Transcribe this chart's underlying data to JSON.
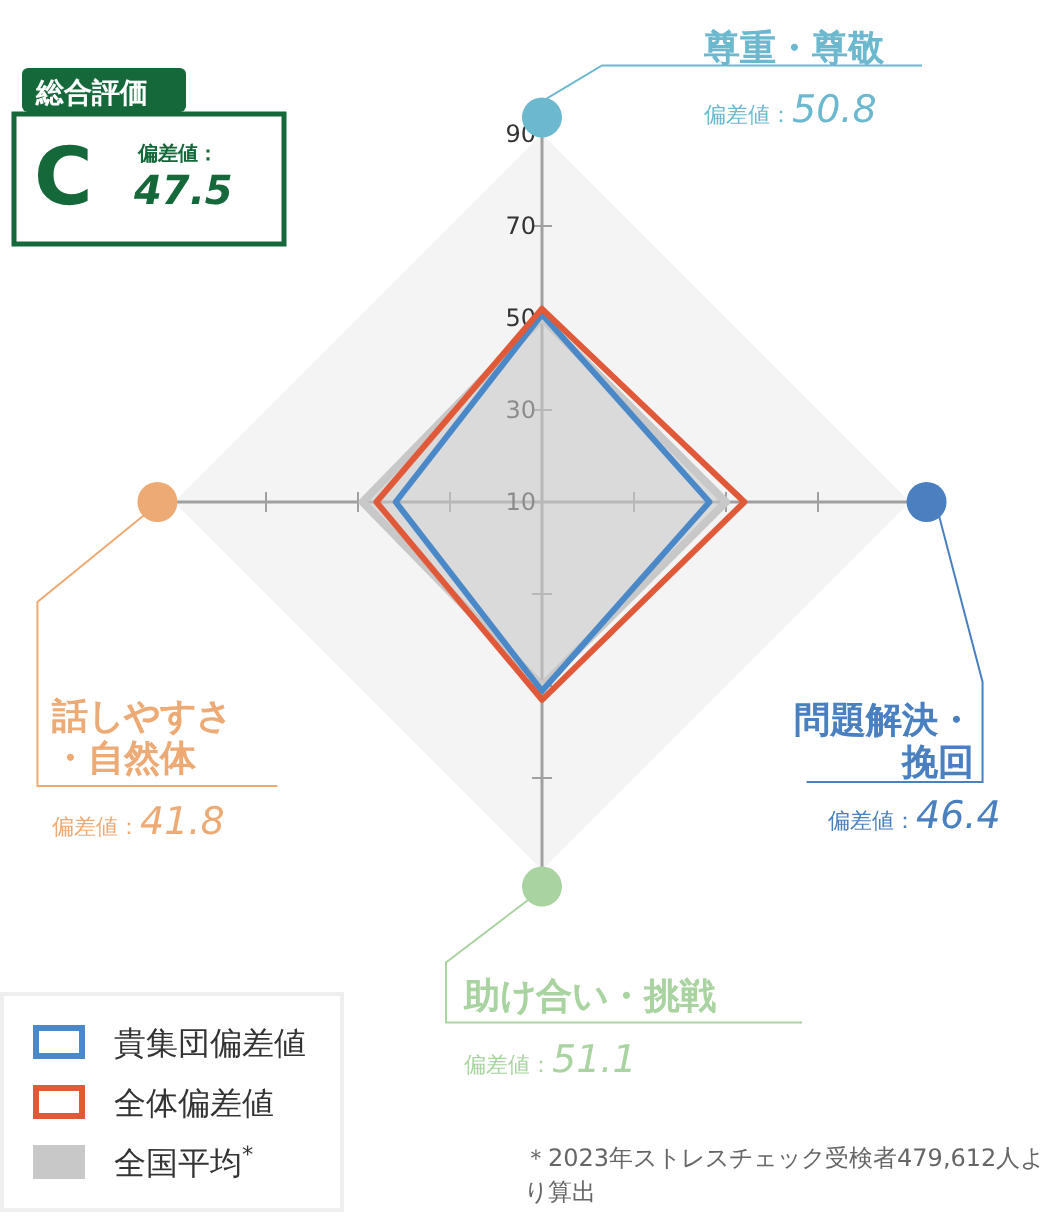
{
  "chart_data": {
    "type": "radar",
    "categories": [
      "尊重・尊敬",
      "問題解決・挽回",
      "助け合い・挑戦",
      "話しやすさ・自然体"
    ],
    "colors": [
      "#6cb8cf",
      "#4a80c0",
      "#a9d3a0",
      "#eeaa74"
    ],
    "ylim": [
      10,
      90
    ],
    "yticks": [
      10,
      30,
      50,
      70,
      90
    ],
    "series": [
      {
        "name": "貴集団偏差値",
        "color": "#4a88c8",
        "values": [
          50.8,
          46.4,
          51.1,
          41.8
        ]
      },
      {
        "name": "全体偏差値",
        "color": "#e05a3a",
        "values": [
          52,
          54,
          53,
          46
        ]
      },
      {
        "name": "全国平均$^{*}$",
        "color": "#c8c8c8",
        "values": [
          50,
          50,
          50,
          49
        ]
      }
    ],
    "legend": "bottom left",
    "annotations": [
      "総合評価",
      "C",
      "偏差値：",
      "47.5",
      "＊2023年ストレスチェック受検者479,612人より算出",
      "偏差値：50.8",
      "偏差値：46.4",
      "偏差値：51.1",
      "偏差値：41.8"
    ]
  }
}
